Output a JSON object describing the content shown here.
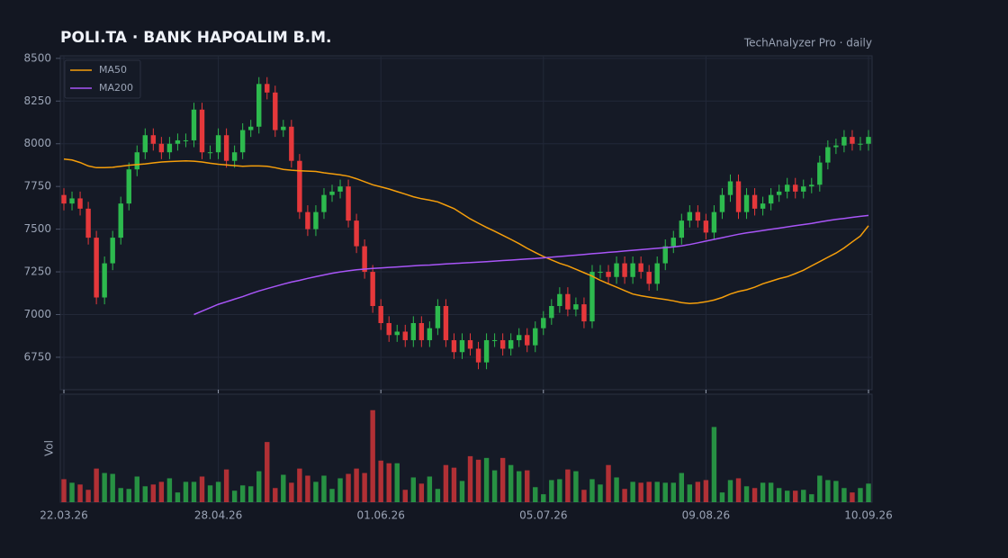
{
  "chart_data": {
    "type": "candlestick",
    "title": "POLI.TA  ·  BANK HAPOALIM B.M.",
    "subtitle": "TechAnalyzer Pro · daily",
    "categories": [
      "22.03.26",
      null,
      null,
      null,
      null,
      null,
      null,
      null,
      null,
      null,
      null,
      null,
      null,
      null,
      null,
      null,
      null,
      null,
      null,
      "28.04.26",
      null,
      null,
      null,
      null,
      null,
      null,
      null,
      null,
      null,
      null,
      null,
      null,
      null,
      null,
      null,
      null,
      null,
      null,
      null,
      "01.06.26",
      null,
      null,
      null,
      null,
      null,
      null,
      null,
      null,
      null,
      null,
      null,
      null,
      null,
      null,
      null,
      null,
      null,
      null,
      null,
      "05.07.26",
      null,
      null,
      null,
      null,
      null,
      null,
      null,
      null,
      null,
      null,
      null,
      null,
      null,
      null,
      null,
      null,
      null,
      null,
      null,
      "09.08.26",
      null,
      null,
      null,
      null,
      null,
      null,
      null,
      null,
      null,
      null,
      null,
      null,
      null,
      null,
      null,
      null,
      null,
      null,
      null,
      "10.09.26"
    ],
    "open": [
      7700,
      7650,
      7680,
      7620,
      7450,
      7100,
      7300,
      7450,
      7650,
      7850,
      7950,
      8050,
      8000,
      7950,
      8000,
      8020,
      8020,
      8200,
      7950,
      7950,
      8050,
      7900,
      7950,
      8080,
      8100,
      8350,
      8300,
      8080,
      8100,
      7900,
      7600,
      7500,
      7600,
      7700,
      7720,
      7750,
      7550,
      7400,
      7250,
      7050,
      6950,
      6880,
      6900,
      6850,
      6950,
      6850,
      6920,
      7050,
      6850,
      6780,
      6850,
      6800,
      6720,
      6850,
      6850,
      6800,
      6850,
      6880,
      6820,
      6920,
      6980,
      7050,
      7120,
      7030,
      7060,
      6960,
      7250,
      7250,
      7220,
      7300,
      7220,
      7300,
      7250,
      7180,
      7300,
      7400,
      7450,
      7550,
      7600,
      7550,
      7480,
      7600,
      7700,
      7780,
      7600,
      7700,
      7620,
      7650,
      7700,
      7720,
      7760,
      7720,
      7750,
      7760,
      7890,
      7980,
      7990,
      8040,
      8000,
      8000
    ],
    "high": [
      7740,
      7720,
      7720,
      7660,
      7490,
      7340,
      7490,
      7690,
      7890,
      7990,
      8090,
      8090,
      8040,
      8040,
      8060,
      8060,
      8240,
      8240,
      7990,
      8090,
      8090,
      7990,
      8120,
      8140,
      8390,
      8390,
      8340,
      8140,
      8140,
      7940,
      7640,
      7640,
      7740,
      7760,
      7790,
      7790,
      7590,
      7440,
      7290,
      7090,
      6990,
      6940,
      6940,
      6990,
      6990,
      6960,
      7090,
      7090,
      6890,
      6890,
      6890,
      6840,
      6890,
      6890,
      6890,
      6890,
      6920,
      6920,
      6960,
      7020,
      7090,
      7160,
      7160,
      7100,
      7100,
      7290,
      7290,
      7290,
      7340,
      7340,
      7340,
      7340,
      7290,
      7340,
      7440,
      7490,
      7590,
      7640,
      7640,
      7590,
      7640,
      7740,
      7820,
      7820,
      7740,
      7740,
      7690,
      7740,
      7760,
      7800,
      7800,
      7790,
      7800,
      7930,
      8020,
      8030,
      8080,
      8080,
      8040,
      8080
    ],
    "low": [
      7610,
      7610,
      7580,
      7410,
      7060,
      7060,
      7260,
      7410,
      7610,
      7810,
      7910,
      7960,
      7910,
      7910,
      7960,
      7980,
      7980,
      7910,
      7910,
      7910,
      7860,
      7860,
      7910,
      8040,
      8060,
      8260,
      8040,
      8040,
      7860,
      7560,
      7460,
      7460,
      7560,
      7660,
      7680,
      7510,
      7360,
      7210,
      7010,
      6910,
      6840,
      6840,
      6810,
      6810,
      6810,
      6810,
      6880,
      6810,
      6740,
      6740,
      6760,
      6680,
      6680,
      6810,
      6760,
      6760,
      6810,
      6780,
      6780,
      6880,
      6940,
      7010,
      6990,
      6990,
      6920,
      6920,
      7210,
      7180,
      7180,
      7180,
      7180,
      7210,
      7140,
      7140,
      7260,
      7360,
      7410,
      7510,
      7510,
      7440,
      7440,
      7560,
      7660,
      7560,
      7560,
      7580,
      7580,
      7610,
      7660,
      7680,
      7680,
      7680,
      7710,
      7720,
      7850,
      7940,
      7950,
      7960,
      7960,
      7960
    ],
    "close": [
      7650,
      7680,
      7620,
      7450,
      7100,
      7300,
      7450,
      7650,
      7850,
      7950,
      8050,
      8000,
      7950,
      8000,
      8020,
      8020,
      8200,
      7950,
      7950,
      8050,
      7900,
      7950,
      8080,
      8100,
      8350,
      8300,
      8080,
      8100,
      7900,
      7600,
      7500,
      7600,
      7700,
      7720,
      7750,
      7550,
      7400,
      7250,
      7050,
      6950,
      6880,
      6900,
      6850,
      6950,
      6850,
      6920,
      7050,
      6850,
      6780,
      6850,
      6800,
      6720,
      6850,
      6850,
      6800,
      6850,
      6880,
      6820,
      6920,
      6980,
      7050,
      7120,
      7030,
      7060,
      6960,
      7250,
      7250,
      7220,
      7300,
      7220,
      7300,
      7250,
      7180,
      7300,
      7400,
      7450,
      7550,
      7600,
      7550,
      7480,
      7600,
      7700,
      7780,
      7600,
      7700,
      7620,
      7650,
      7700,
      7720,
      7760,
      7720,
      7750,
      7760,
      7890,
      7980,
      7990,
      8040,
      8000,
      8000,
      8040
    ],
    "up_color": "#2dba4e",
    "down_color": "#e5383b",
    "series": [
      {
        "name": "MA50",
        "color": "#f59e0b",
        "values": [
          7910,
          7905,
          7890,
          7870,
          7860,
          7860,
          7862,
          7868,
          7874,
          7878,
          7882,
          7888,
          7893,
          7896,
          7898,
          7900,
          7898,
          7893,
          7886,
          7880,
          7876,
          7872,
          7868,
          7870,
          7870,
          7868,
          7860,
          7850,
          7845,
          7842,
          7840,
          7838,
          7830,
          7824,
          7818,
          7810,
          7795,
          7778,
          7760,
          7748,
          7735,
          7720,
          7705,
          7690,
          7678,
          7670,
          7660,
          7640,
          7620,
          7590,
          7560,
          7535,
          7510,
          7488,
          7464,
          7440,
          7415,
          7388,
          7363,
          7340,
          7320,
          7300,
          7285,
          7265,
          7245,
          7225,
          7200,
          7180,
          7160,
          7140,
          7120,
          7110,
          7102,
          7095,
          7088,
          7080,
          7070,
          7065,
          7068,
          7075,
          7085,
          7100,
          7120,
          7135,
          7145,
          7160,
          7180,
          7195,
          7210,
          7222,
          7240,
          7260,
          7285,
          7310,
          7335,
          7360,
          7390,
          7425,
          7460,
          7520
        ]
      },
      {
        "name": "MA200",
        "color": "#a855f7",
        "values": [
          null,
          null,
          null,
          null,
          null,
          null,
          null,
          null,
          null,
          null,
          null,
          null,
          null,
          null,
          null,
          null,
          7000,
          7020,
          7040,
          7060,
          7075,
          7090,
          7105,
          7122,
          7138,
          7152,
          7165,
          7178,
          7190,
          7200,
          7212,
          7222,
          7232,
          7242,
          7250,
          7256,
          7262,
          7266,
          7270,
          7273,
          7276,
          7279,
          7282,
          7285,
          7288,
          7290,
          7293,
          7296,
          7299,
          7302,
          7304,
          7307,
          7310,
          7313,
          7316,
          7319,
          7322,
          7325,
          7328,
          7332,
          7336,
          7340,
          7344,
          7348,
          7352,
          7356,
          7360,
          7364,
          7368,
          7372,
          7376,
          7380,
          7384,
          7388,
          7392,
          7396,
          7402,
          7410,
          7420,
          7430,
          7440,
          7450,
          7460,
          7470,
          7478,
          7485,
          7492,
          7499,
          7506,
          7513,
          7520,
          7527,
          7534,
          7542,
          7550,
          7557,
          7563,
          7569,
          7575,
          7580
        ]
      }
    ],
    "volume": {
      "label": "Vol",
      "ylim": [
        0,
        1200
      ],
      "values": [
        260,
        220,
        200,
        140,
        380,
        330,
        320,
        160,
        150,
        290,
        180,
        200,
        230,
        270,
        110,
        230,
        230,
        290,
        190,
        230,
        370,
        130,
        190,
        180,
        350,
        680,
        160,
        310,
        220,
        380,
        300,
        230,
        300,
        150,
        270,
        320,
        380,
        330,
        1040,
        470,
        440,
        440,
        140,
        280,
        210,
        290,
        150,
        420,
        390,
        240,
        520,
        480,
        500,
        360,
        500,
        420,
        350,
        360,
        170,
        90,
        250,
        260,
        370,
        350,
        140,
        260,
        200,
        420,
        280,
        150,
        230,
        220,
        230,
        230,
        220,
        220,
        330,
        200,
        230,
        250,
        850,
        110,
        250,
        270,
        180,
        160,
        220,
        220,
        160,
        130,
        130,
        140,
        90,
        300,
        250,
        240,
        160,
        110,
        160,
        210
      ]
    },
    "ylim": [
      6560,
      8515
    ],
    "yticks": [
      {
        "value": 6750,
        "label": "6750"
      },
      {
        "value": 7000,
        "label": "7000"
      },
      {
        "value": 7250,
        "label": "7250"
      },
      {
        "value": 7500,
        "label": "7500"
      },
      {
        "value": 7750,
        "label": "7750"
      },
      {
        "value": 8000,
        "label": "8000"
      },
      {
        "value": 8250,
        "label": "8250"
      },
      {
        "value": 8500,
        "label": "8500"
      }
    ],
    "grid": true,
    "legend": "upper left"
  }
}
